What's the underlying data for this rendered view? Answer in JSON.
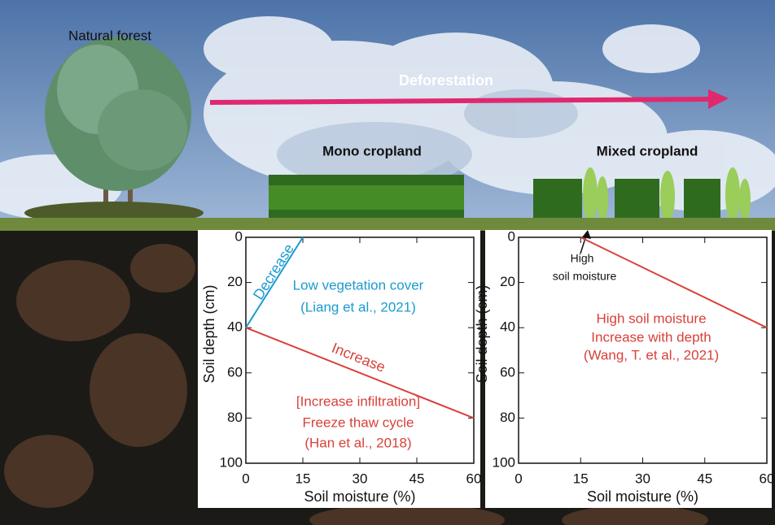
{
  "scene": {
    "forest_label": "Natural forest",
    "arrow_label": "Deforestation",
    "mono_label": "Mono cropland",
    "mixed_label": "Mixed cropland"
  },
  "chart_data": [
    {
      "type": "line",
      "xlabel": "Soil moisture (%)",
      "ylabel": "Soil depth (cm)",
      "xlim": [
        0,
        60
      ],
      "xticks": [
        0,
        15,
        30,
        45,
        60
      ],
      "ylim": [
        0,
        100
      ],
      "yticks": [
        0,
        20,
        40,
        60,
        80,
        100
      ],
      "y_inverted": true,
      "series": [
        {
          "name": "Decrease",
          "color": "#1a9bd0",
          "x": [
            0,
            15
          ],
          "values": [
            40,
            0
          ]
        },
        {
          "name": "Increase",
          "color": "#d9403a",
          "x": [
            0,
            60
          ],
          "values": [
            40,
            80
          ]
        }
      ],
      "annotations": [
        {
          "text": "Low vegetation cover",
          "color": "#1a9bd0"
        },
        {
          "text": "(Liang et al., 2021)",
          "color": "#1a9bd0"
        },
        {
          "text": "[Increase infiltration]",
          "color": "#d9403a"
        },
        {
          "text": "Freeze thaw cycle",
          "color": "#d9403a"
        },
        {
          "text": "(Han et al., 2018)",
          "color": "#d9403a"
        }
      ]
    },
    {
      "type": "line",
      "xlabel": "Soil moisture (%)",
      "ylabel": "Soil depth (cm)",
      "xlim": [
        0,
        60
      ],
      "xticks": [
        0,
        15,
        30,
        45,
        60
      ],
      "ylim": [
        0,
        100
      ],
      "yticks": [
        0,
        20,
        40,
        60,
        80,
        100
      ],
      "y_inverted": true,
      "series": [
        {
          "color": "#d9403a",
          "x": [
            15,
            60
          ],
          "values": [
            0,
            40
          ]
        }
      ],
      "annotations": [
        {
          "text": "High",
          "color": "#111111"
        },
        {
          "text": "soil moisture",
          "color": "#111111"
        },
        {
          "text": "High soil moisture",
          "color": "#d9403a"
        },
        {
          "text": "Increase with depth",
          "color": "#d9403a"
        },
        {
          "text": "(Wang, T. et al., 2021)",
          "color": "#d9403a"
        }
      ]
    }
  ]
}
